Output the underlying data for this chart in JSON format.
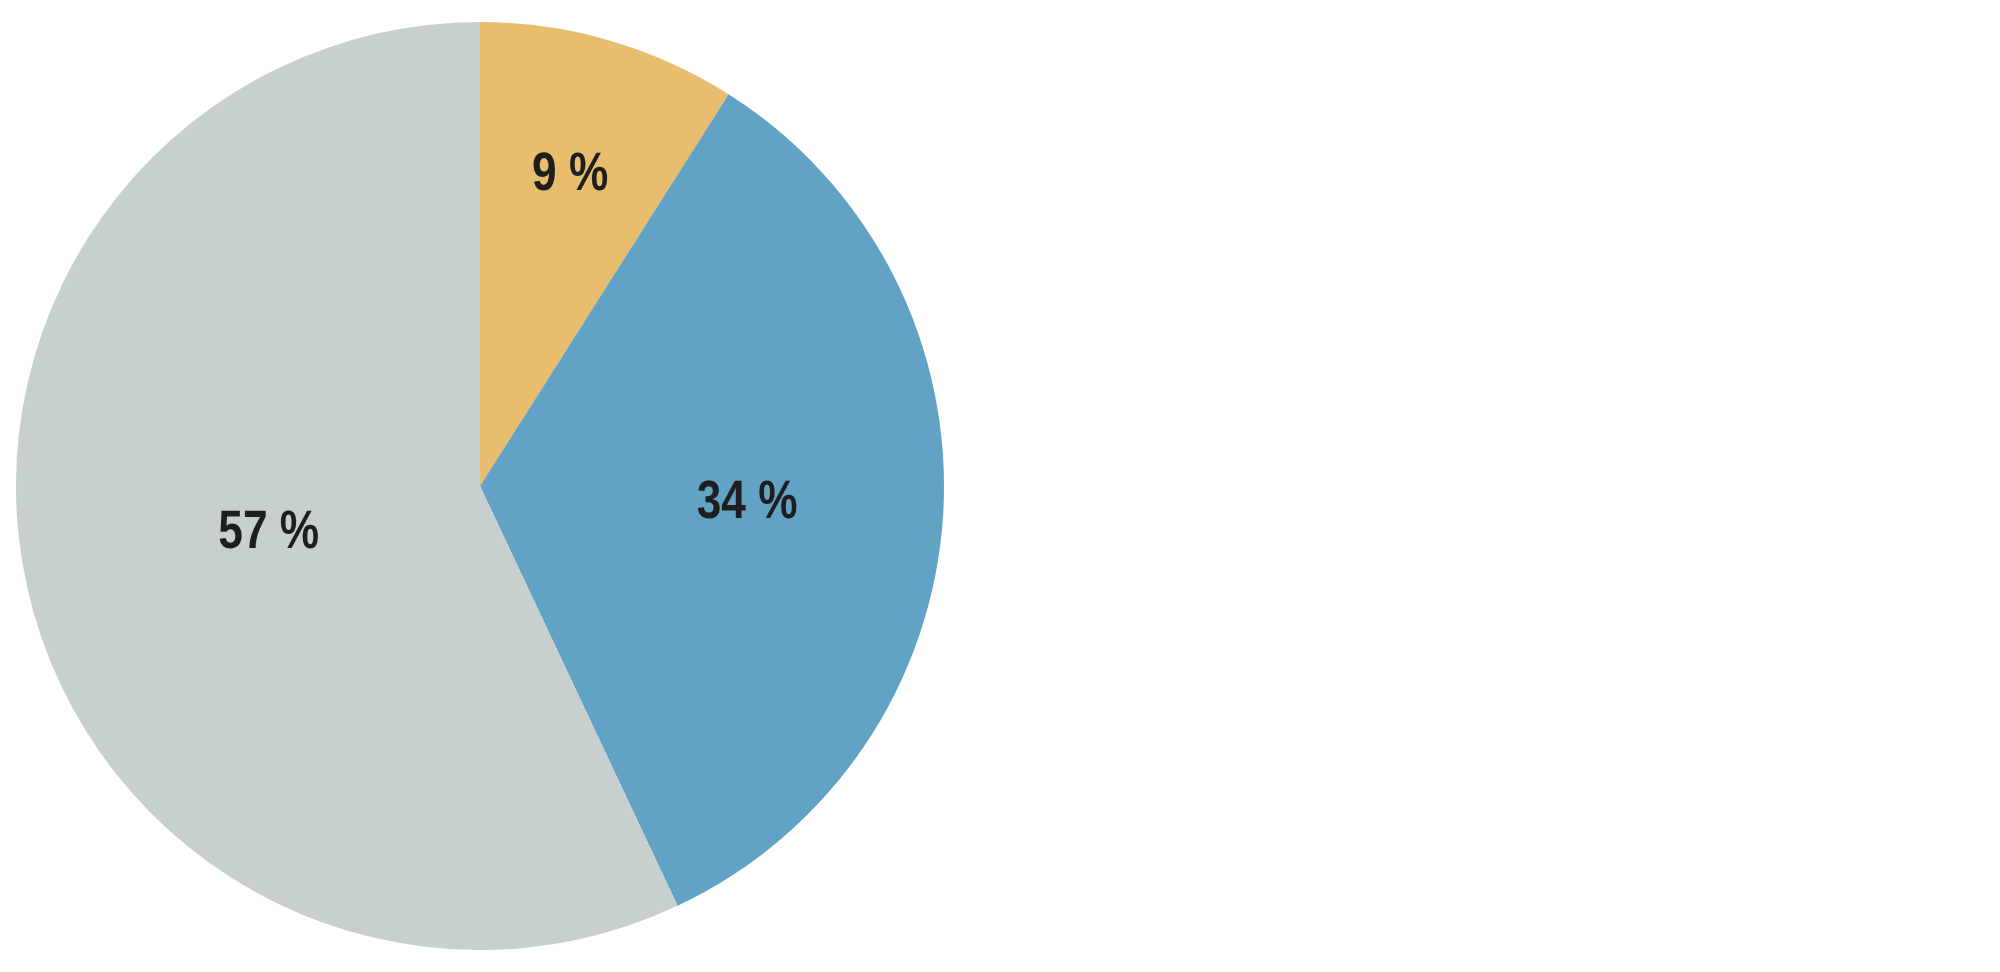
{
  "chart_data": {
    "type": "pie",
    "categories": [
      null,
      null,
      null
    ],
    "values": [
      9,
      34,
      57
    ],
    "colors": [
      "#e8bd6d",
      "#62a3c5",
      "#c8d0cf"
    ],
    "value_labels": [
      "9 %",
      "34 %",
      "57 %"
    ],
    "legend": false
  }
}
